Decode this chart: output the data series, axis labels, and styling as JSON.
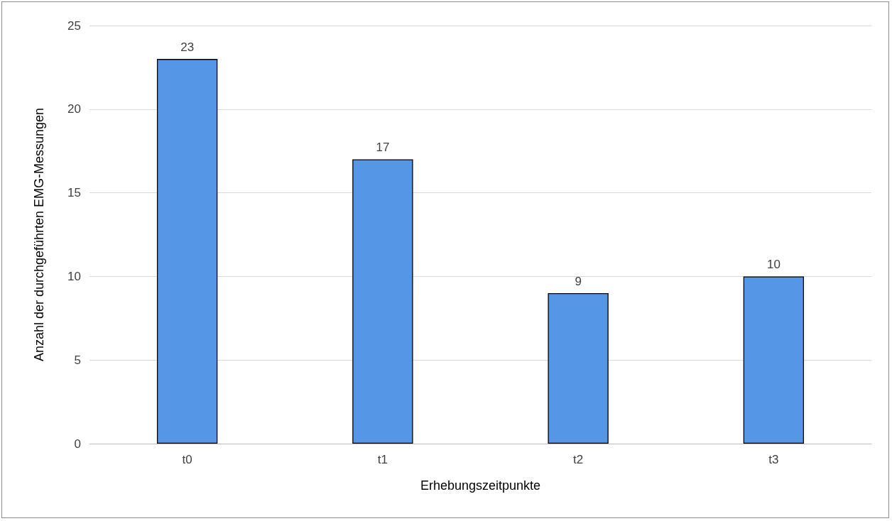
{
  "chart_data": {
    "type": "bar",
    "xlabel": "Erhebungszeitpunkte",
    "ylabel": "Anzahl der durchgeführten EMG-Messungen",
    "categories": [
      "t0",
      "t1",
      "t2",
      "t3"
    ],
    "values": [
      23,
      17,
      9,
      10
    ],
    "color": "#5597e6",
    "ylim": [
      0,
      25
    ],
    "yticks": [
      0,
      5,
      10,
      15,
      20,
      25
    ],
    "grid": "y",
    "data_labels": true
  }
}
